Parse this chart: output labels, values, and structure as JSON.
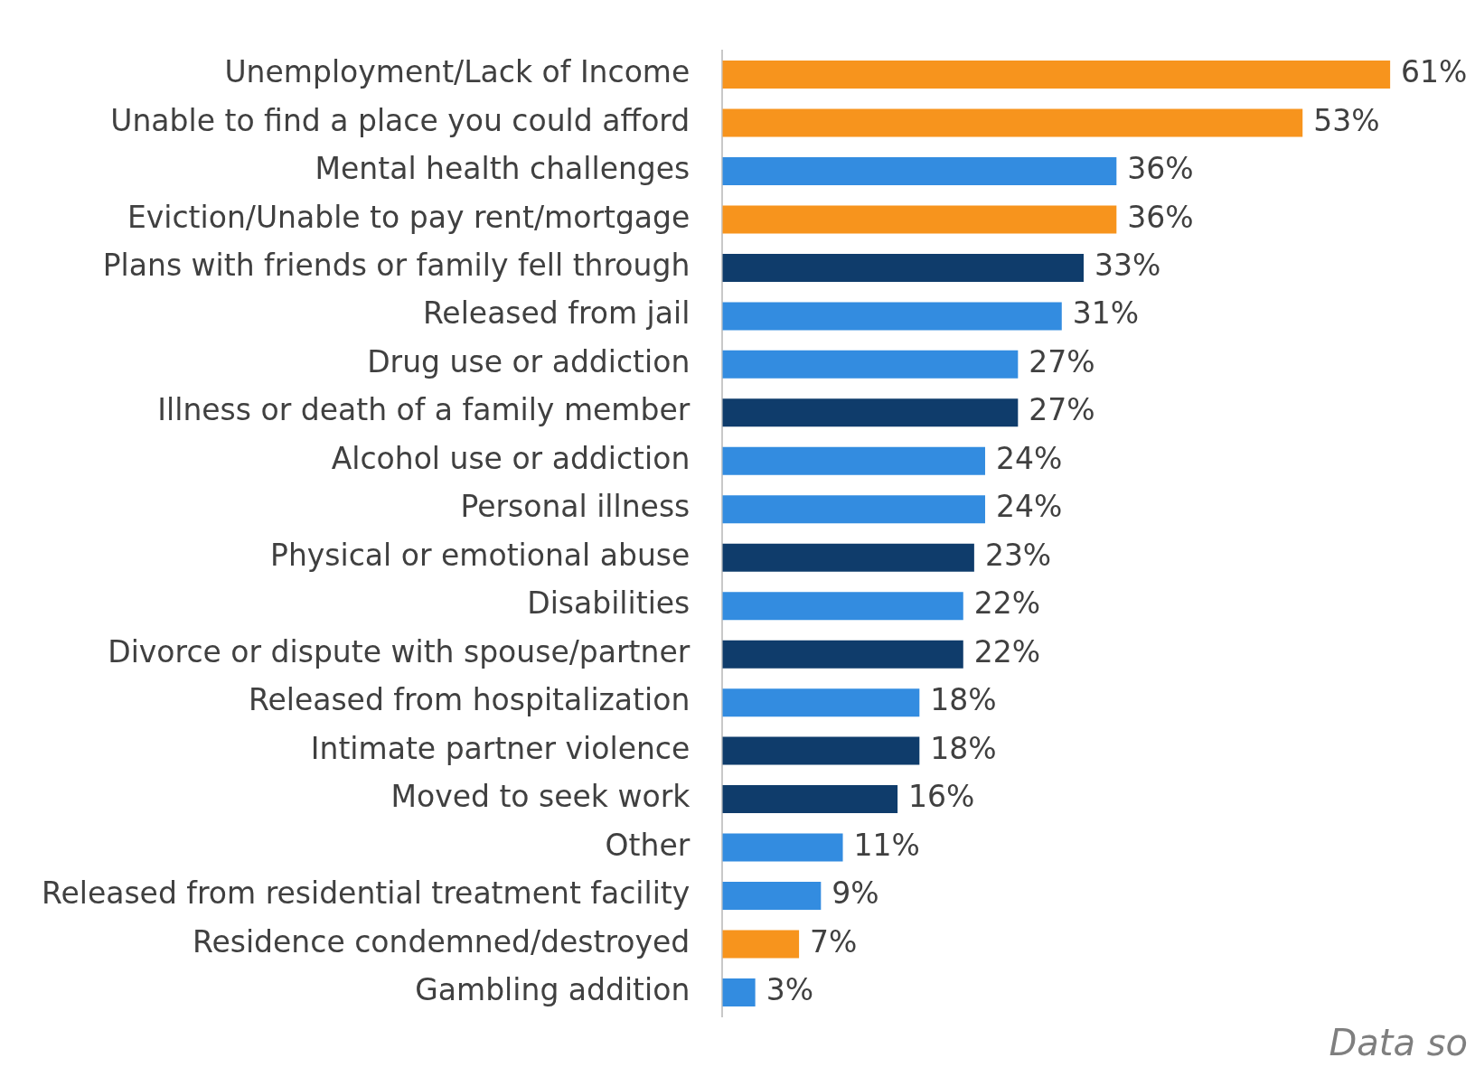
{
  "chart_data": {
    "type": "bar",
    "orientation": "horizontal",
    "categories": [
      "Unemployment/Lack of Income",
      "Unable to find a place you could afford",
      "Mental health challenges",
      "Eviction/Unable to pay rent/mortgage",
      "Plans with friends or family fell through",
      "Released from jail",
      "Drug use or addiction",
      "Illness or death of a family member",
      "Alcohol use or addiction",
      "Personal illness",
      "Physical or emotional abuse",
      "Disabilities",
      "Divorce or dispute with spouse/partner",
      "Released from hospitalization",
      "Intimate partner violence",
      "Moved to seek work",
      "Other",
      "Released from residential treatment facility",
      "Residence condemned/destroyed",
      "Gambling addition"
    ],
    "values": [
      61,
      53,
      36,
      36,
      33,
      31,
      27,
      27,
      24,
      24,
      23,
      22,
      22,
      18,
      18,
      16,
      11,
      9,
      7,
      3
    ],
    "value_labels": [
      "61%",
      "53%",
      "36%",
      "36%",
      "33%",
      "31%",
      "27%",
      "27%",
      "24%",
      "24%",
      "23%",
      "22%",
      "22%",
      "18%",
      "18%",
      "16%",
      "11%",
      "9%",
      "7%",
      "3%"
    ],
    "colors": [
      "#f7941d",
      "#f7941d",
      "#338ce0",
      "#f7941d",
      "#0f3c6b",
      "#338ce0",
      "#338ce0",
      "#0f3c6b",
      "#338ce0",
      "#338ce0",
      "#0f3c6b",
      "#338ce0",
      "#0f3c6b",
      "#338ce0",
      "#0f3c6b",
      "#0f3c6b",
      "#338ce0",
      "#338ce0",
      "#f7941d",
      "#338ce0"
    ],
    "annotations": [
      "Data so"
    ],
    "legend": false
  }
}
